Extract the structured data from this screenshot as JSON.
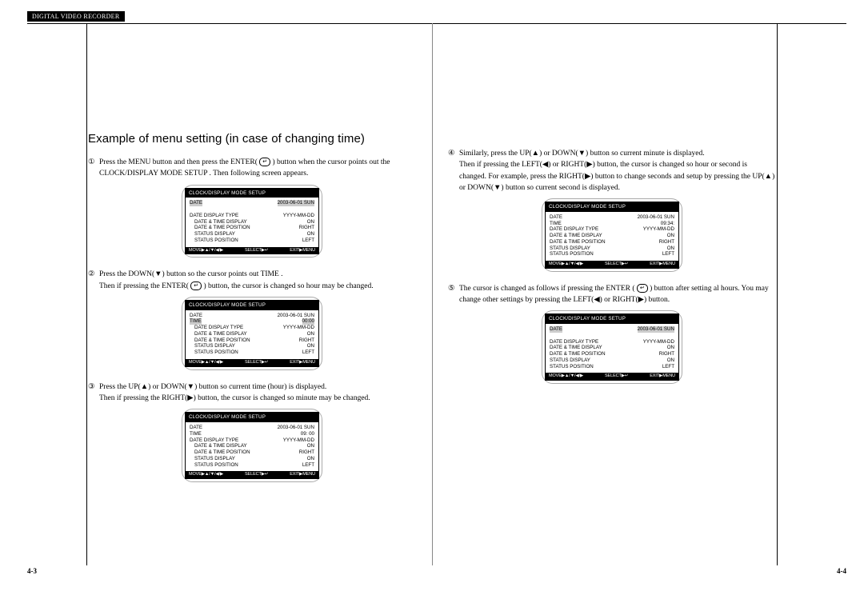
{
  "header": "DIGITAL VIDEO RECORDER",
  "section_title": "Example of menu setting (in case of changing time)",
  "page_left_num": "4-3",
  "page_right_num": "4-4",
  "enter_glyph": "↵",
  "menu_common": {
    "title": "CLOCK/DISPLAY MODE SETUP",
    "footer_move": "MOVE▶▲/▼/◀/▶",
    "footer_select": "SELECT▶↵",
    "footer_exit": "EXIT▶MENU"
  },
  "steps_left": [
    {
      "num": "①",
      "text_a": "Press the MENU button and then press the ENTER(",
      "text_b": ") button when the cursor points out the CLOCK/DISPLAY MODE SETUP . Then following screen appears.",
      "menu_rows": [
        {
          "lbl": "DATE",
          "val": "2003-06-01 SUN",
          "hl": true
        },
        {
          "lbl": "",
          "val": ""
        },
        {
          "lbl": "DATE DISPLAY TYPE",
          "val": "YYYY-MM-DD"
        },
        {
          "lbl": "DATE & TIME DISPLAY",
          "val": "ON",
          "indent": true
        },
        {
          "lbl": "DATE & TIME POSITION",
          "val": "RIGHT",
          "indent": true
        },
        {
          "lbl": "STATUS DISPLAY",
          "val": "ON",
          "indent": true
        },
        {
          "lbl": "STATUS POSITION",
          "val": "LEFT",
          "indent": true
        }
      ]
    },
    {
      "num": "②",
      "text_a": "Press the DOWN(▼) button so the cursor points out TIME .",
      "text_b": "Then if pressing the ENTER(",
      "text_c": ") button, the cursor is changed so hour may be changed.",
      "menu_rows": [
        {
          "lbl": "DATE",
          "val": "2003-06-01 SUN"
        },
        {
          "lbl": "TIME",
          "val": "00:00",
          "hl": true
        },
        {
          "lbl": "DATE DISPLAY TYPE",
          "val": "YYYY-MM-DD",
          "indent": true
        },
        {
          "lbl": "DATE & TIME DISPLAY",
          "val": "ON",
          "indent": true
        },
        {
          "lbl": "DATE & TIME POSITION",
          "val": "RIGHT",
          "indent": true
        },
        {
          "lbl": "STATUS DISPLAY",
          "val": "ON",
          "indent": true
        },
        {
          "lbl": "STATUS POSITION",
          "val": "LEFT",
          "indent": true
        }
      ]
    },
    {
      "num": "③",
      "text_a": "Press the UP(▲) or DOWN(▼) button so current time (hour) is displayed.",
      "text_b": "Then if pressing the RIGHT(▶) button, the cursor is changed so minute may be changed.",
      "menu_rows": [
        {
          "lbl": "DATE",
          "val": "2003-06-01 SUN"
        },
        {
          "lbl": "TIME",
          "val": "09:   00"
        },
        {
          "lbl": "DATE DISPLAY TYPE",
          "val": "YYYY-MM-DD"
        },
        {
          "lbl": "DATE & TIME DISPLAY",
          "val": "ON",
          "indent": true
        },
        {
          "lbl": "DATE & TIME POSITION",
          "val": "RIGHT",
          "indent": true
        },
        {
          "lbl": "STATUS DISPLAY",
          "val": "ON",
          "indent": true
        },
        {
          "lbl": "STATUS POSITION",
          "val": "LEFT",
          "indent": true
        }
      ]
    }
  ],
  "steps_right": [
    {
      "num": "④",
      "text_a": "Similarly, press the UP(▲) or DOWN(▼) button so current minute is displayed.",
      "text_b": "Then if pressing the LEFT(◀) or RIGHT(▶) button, the cursor is changed so hour or second is changed. For example, press the RIGHT(▶) button to change seconds and setup by pressing the UP(▲) or DOWN(▼) button so current second is displayed.",
      "menu_rows": [
        {
          "lbl": "DATE",
          "val": "2003-06-01 SUN"
        },
        {
          "lbl": "TIME",
          "val": "09:34:"
        },
        {
          "lbl": "DATE DISPLAY TYPE",
          "val": "YYYY-MM-DD"
        },
        {
          "lbl": "DATE & TIME DISPLAY",
          "val": "ON"
        },
        {
          "lbl": "DATE & TIME POSITION",
          "val": "RIGHT"
        },
        {
          "lbl": "STATUS DISPLAY",
          "val": "ON"
        },
        {
          "lbl": "STATUS POSITION",
          "val": "LEFT"
        }
      ]
    },
    {
      "num": "⑤",
      "text_a": "The cursor is changed as follows if pressing the ENTER (",
      "text_b": ") button after setting al hours. You may change other settings by pressing the LEFT(◀) or RIGHT(▶) button.",
      "menu_rows": [
        {
          "lbl": "DATE",
          "val": "2003-06-01 SUN",
          "hl": true
        },
        {
          "lbl": "",
          "val": ""
        },
        {
          "lbl": "DATE DISPLAY TYPE",
          "val": "YYYY-MM-DD"
        },
        {
          "lbl": "DATE & TIME DISPLAY",
          "val": "ON"
        },
        {
          "lbl": "DATE & TIME POSITION",
          "val": "RIGHT"
        },
        {
          "lbl": "STATUS DISPLAY",
          "val": "ON"
        },
        {
          "lbl": "STATUS POSITION",
          "val": "LEFT"
        }
      ]
    }
  ]
}
